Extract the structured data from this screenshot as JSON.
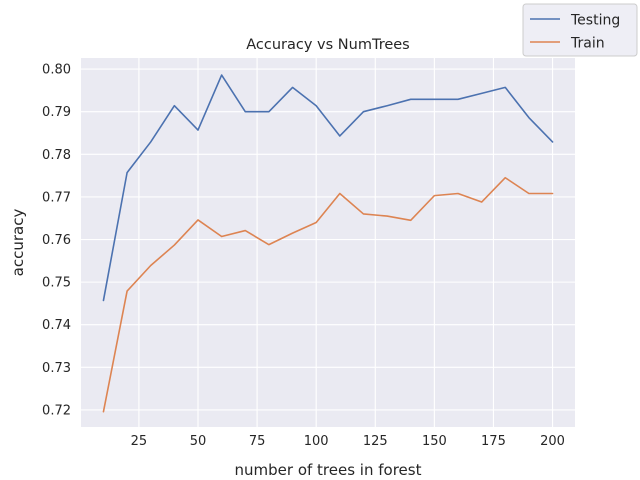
{
  "chart_data": {
    "type": "line",
    "title": "Accuracy vs NumTrees",
    "xlabel": "number of trees in forest",
    "ylabel": "accuracy",
    "x": [
      10,
      20,
      30,
      40,
      50,
      60,
      70,
      80,
      90,
      100,
      110,
      120,
      130,
      140,
      150,
      160,
      170,
      180,
      190,
      200
    ],
    "series": [
      {
        "name": "Testing",
        "color": "#4c72b0",
        "values": [
          0.7457,
          0.7757,
          0.7829,
          0.7914,
          0.7857,
          0.7986,
          0.79,
          0.79,
          0.7957,
          0.7914,
          0.7843,
          0.79,
          0.7914,
          0.7929,
          0.7929,
          0.7929,
          0.7943,
          0.7957,
          0.7886,
          0.7829
        ]
      },
      {
        "name": "Train",
        "color": "#dd8452",
        "values": [
          0.7196,
          0.7479,
          0.7539,
          0.7587,
          0.7646,
          0.7607,
          0.7621,
          0.7588,
          0.7615,
          0.764,
          0.7708,
          0.766,
          0.7655,
          0.7645,
          0.7703,
          0.7708,
          0.7688,
          0.7745,
          0.7708,
          0.7708
        ]
      }
    ],
    "xlim": [
      0.5,
      209.5
    ],
    "ylim": [
      0.716,
      0.8026
    ],
    "xticks": [
      25,
      50,
      75,
      100,
      125,
      150,
      175,
      200
    ],
    "yticks": [
      0.72,
      0.73,
      0.74,
      0.75,
      0.76,
      0.77,
      0.78,
      0.79,
      0.8
    ],
    "ytick_labels": [
      "0.72",
      "0.73",
      "0.74",
      "0.75",
      "0.76",
      "0.77",
      "0.78",
      "0.79",
      "0.80"
    ],
    "grid": true,
    "legend_position": "top-right outside",
    "background_color": "#eaeaf2",
    "grid_color": "#ffffff"
  }
}
